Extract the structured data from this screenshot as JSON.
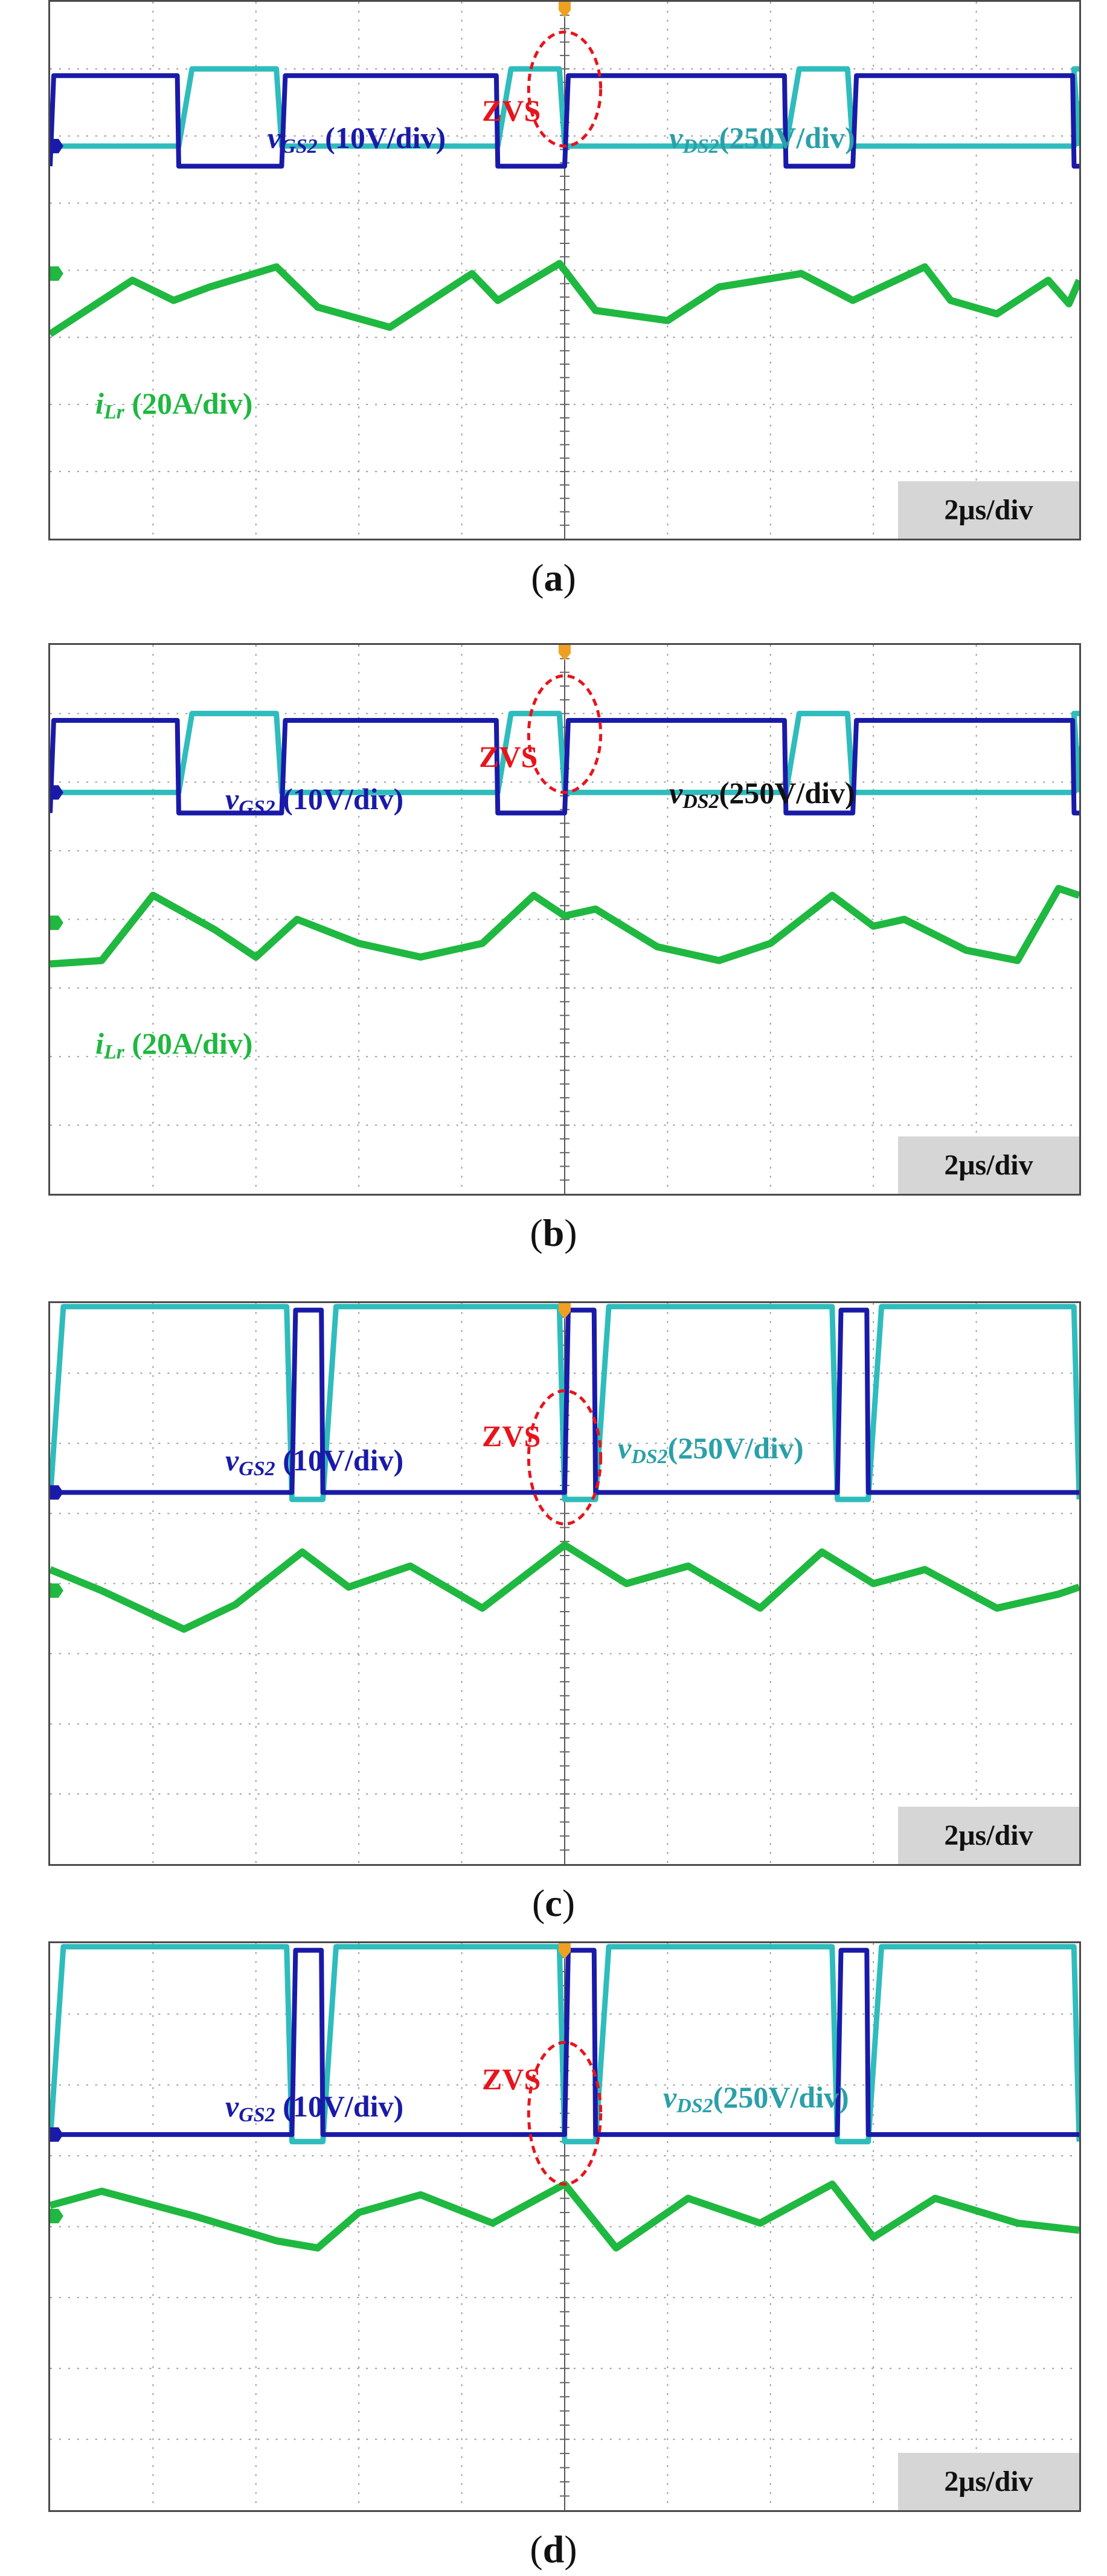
{
  "colors": {
    "gate": "#1a1aa8",
    "drain": "#2fbcbc",
    "current": "#1fb840",
    "zvs": "#e8141b",
    "grid": "#9a9a9a"
  },
  "chart_data": [
    {
      "type": "line",
      "panel": "a",
      "caption": "a",
      "labels": {
        "vgs": {
          "v": "v",
          "sub": "GS2",
          "rest": " (10V/div)"
        },
        "vds": {
          "v": "v",
          "sub": "DS2",
          "rest": "(250V/div)"
        },
        "ilr": {
          "v": "i",
          "sub": "Lr",
          "rest": " (20A/div)"
        },
        "zvs": "ZVS",
        "timebase": "2μs/div"
      },
      "grid_divisions": {
        "x": 10,
        "y": 8
      },
      "time_per_div_us": 2,
      "series": [
        {
          "key": "vgs",
          "on_intervals_div": [
            [
              -0.2,
              1.25
            ],
            [
              2.25,
              4.35
            ],
            [
              5.0,
              7.15
            ],
            [
              7.8,
              9.95
            ]
          ],
          "high_div": 1.05,
          "low_div": -0.3,
          "baseline_div": 2.15
        },
        {
          "key": "vds",
          "on_intervals_div": [
            [
              1.25,
              2.25
            ],
            [
              4.35,
              5.0
            ],
            [
              7.15,
              7.8
            ],
            [
              9.95,
              10.2
            ]
          ],
          "high_div": 1.15,
          "low_div": 0.0,
          "baseline_div": 2.15
        },
        {
          "key": "ilr",
          "points": [
            [
              0,
              -0.9
            ],
            [
              0.8,
              -0.1
            ],
            [
              1.2,
              -0.4
            ],
            [
              1.55,
              -0.2
            ],
            [
              2.2,
              0.1
            ],
            [
              2.6,
              -0.5
            ],
            [
              3.3,
              -0.8
            ],
            [
              4.1,
              0.0
            ],
            [
              4.35,
              -0.4
            ],
            [
              4.95,
              0.15
            ],
            [
              5.3,
              -0.55
            ],
            [
              6.0,
              -0.7
            ],
            [
              6.5,
              -0.2
            ],
            [
              7.3,
              0.0
            ],
            [
              7.8,
              -0.4
            ],
            [
              8.5,
              0.1
            ],
            [
              8.75,
              -0.4
            ],
            [
              9.2,
              -0.6
            ],
            [
              9.7,
              -0.1
            ],
            [
              9.9,
              -0.45
            ],
            [
              10.0,
              -0.1
            ]
          ],
          "baseline_div": 4.05
        }
      ],
      "zvs_marker_div": {
        "cx": 5.0,
        "cy": 1.3,
        "rx": 0.35,
        "ry": 0.85
      }
    },
    {
      "type": "line",
      "panel": "b",
      "caption": "b",
      "labels": {
        "vgs": {
          "v": "v",
          "sub": "GS2",
          "rest": " (10V/div)"
        },
        "vds": {
          "v": "v",
          "sub": "DS2",
          "rest": "(250V/div)"
        },
        "ilr": {
          "v": "i",
          "sub": "Lr",
          "rest": " (20A/div)"
        },
        "zvs": "ZVS",
        "timebase": "2μs/div"
      },
      "grid_divisions": {
        "x": 10,
        "y": 8
      },
      "time_per_div_us": 2,
      "series": [
        {
          "key": "vgs",
          "on_intervals_div": [
            [
              -0.2,
              1.25
            ],
            [
              2.25,
              4.35
            ],
            [
              5.0,
              7.15
            ],
            [
              7.8,
              9.95
            ]
          ],
          "high_div": 1.05,
          "low_div": -0.3,
          "baseline_div": 2.15
        },
        {
          "key": "vds",
          "on_intervals_div": [
            [
              1.25,
              2.25
            ],
            [
              4.35,
              5.0
            ],
            [
              7.15,
              7.8
            ],
            [
              9.95,
              10.2
            ]
          ],
          "high_div": 1.15,
          "low_div": 0.0,
          "baseline_div": 2.15
        },
        {
          "key": "ilr",
          "points": [
            [
              0,
              -0.6
            ],
            [
              0.5,
              -0.55
            ],
            [
              1.0,
              0.4
            ],
            [
              1.6,
              -0.1
            ],
            [
              2.0,
              -0.5
            ],
            [
              2.4,
              0.05
            ],
            [
              3.0,
              -0.3
            ],
            [
              3.6,
              -0.5
            ],
            [
              4.2,
              -0.3
            ],
            [
              4.7,
              0.4
            ],
            [
              5.0,
              0.1
            ],
            [
              5.3,
              0.2
            ],
            [
              5.9,
              -0.35
            ],
            [
              6.5,
              -0.55
            ],
            [
              7.0,
              -0.3
            ],
            [
              7.6,
              0.4
            ],
            [
              8.0,
              -0.05
            ],
            [
              8.3,
              0.05
            ],
            [
              8.9,
              -0.4
            ],
            [
              9.4,
              -0.55
            ],
            [
              9.8,
              0.5
            ],
            [
              10.0,
              0.4
            ]
          ],
          "baseline_div": 4.05
        }
      ],
      "zvs_marker_div": {
        "cx": 5.0,
        "cy": 1.3,
        "rx": 0.35,
        "ry": 0.85
      }
    },
    {
      "type": "line",
      "panel": "c",
      "caption": "c",
      "labels": {
        "vgs": {
          "v": "v",
          "sub": "GS2",
          "rest": " (10V/div)"
        },
        "vds": {
          "v": "v",
          "sub": "DS2",
          "rest": "(250V/div)"
        },
        "ilr": {
          "v": "i",
          "sub": "Lr",
          "rest": " (20A/div)"
        },
        "zvs": "ZVS",
        "timebase": "2μs/div"
      },
      "grid_divisions": {
        "x": 10,
        "y": 8
      },
      "time_per_div_us": 2,
      "series": [
        {
          "key": "vgs",
          "on_intervals_div": [
            [
              2.35,
              2.65
            ],
            [
              5.0,
              5.3
            ],
            [
              7.65,
              7.95
            ]
          ],
          "high_div": 2.6,
          "low_div": 0.0,
          "baseline_div": 2.7
        },
        {
          "key": "vds",
          "on_intervals_div": [
            [
              -0.2,
              2.35
            ],
            [
              2.65,
              5.0
            ],
            [
              5.3,
              7.65
            ],
            [
              7.95,
              10.2
            ]
          ],
          "high_div": 2.65,
          "low_div": -0.1,
          "baseline_div": 2.7
        },
        {
          "key": "ilr",
          "points": [
            [
              0,
              0.3
            ],
            [
              0.5,
              0.0
            ],
            [
              1.3,
              -0.55
            ],
            [
              1.8,
              -0.2
            ],
            [
              2.45,
              0.55
            ],
            [
              2.9,
              0.05
            ],
            [
              3.5,
              0.35
            ],
            [
              4.2,
              -0.25
            ],
            [
              5.0,
              0.65
            ],
            [
              5.6,
              0.1
            ],
            [
              6.2,
              0.35
            ],
            [
              6.9,
              -0.25
            ],
            [
              7.5,
              0.55
            ],
            [
              8.0,
              0.1
            ],
            [
              8.5,
              0.3
            ],
            [
              9.2,
              -0.25
            ],
            [
              9.8,
              -0.05
            ],
            [
              10.0,
              0.05
            ]
          ],
          "baseline_div": 4.1
        }
      ],
      "zvs_marker_div": {
        "cx": 5.0,
        "cy": 2.2,
        "rx": 0.35,
        "ry": 0.95
      }
    },
    {
      "type": "line",
      "panel": "d",
      "caption": "d",
      "labels": {
        "vgs": {
          "v": "v",
          "sub": "GS2",
          "rest": " (10V/div)"
        },
        "vds": {
          "v": "v",
          "sub": "DS2",
          "rest": "(250V/div)"
        },
        "ilr": {
          "v": "i",
          "sub": "Lr",
          "rest": " (20A/div)"
        },
        "zvs": "ZVS",
        "timebase": "2μs/div"
      },
      "grid_divisions": {
        "x": 10,
        "y": 8
      },
      "time_per_div_us": 2,
      "series": [
        {
          "key": "vgs",
          "on_intervals_div": [
            [
              2.35,
              2.65
            ],
            [
              5.0,
              5.3
            ],
            [
              7.65,
              7.95
            ]
          ],
          "high_div": 2.6,
          "low_div": 0.0,
          "baseline_div": 2.7
        },
        {
          "key": "vds",
          "on_intervals_div": [
            [
              -0.2,
              2.35
            ],
            [
              2.65,
              5.0
            ],
            [
              5.3,
              7.65
            ],
            [
              7.95,
              10.2
            ]
          ],
          "high_div": 2.65,
          "low_div": -0.1,
          "baseline_div": 2.7
        },
        {
          "key": "ilr",
          "points": [
            [
              0,
              0.15
            ],
            [
              0.5,
              0.35
            ],
            [
              1.4,
              0.0
            ],
            [
              2.2,
              -0.35
            ],
            [
              2.6,
              -0.45
            ],
            [
              3.0,
              0.05
            ],
            [
              3.6,
              0.3
            ],
            [
              4.3,
              -0.1
            ],
            [
              5.0,
              0.45
            ],
            [
              5.5,
              -0.45
            ],
            [
              6.2,
              0.25
            ],
            [
              6.9,
              -0.1
            ],
            [
              7.6,
              0.45
            ],
            [
              8.0,
              -0.3
            ],
            [
              8.6,
              0.25
            ],
            [
              9.4,
              -0.1
            ],
            [
              10.0,
              -0.2
            ]
          ],
          "baseline_div": 3.85
        }
      ],
      "zvs_marker_div": {
        "cx": 5.0,
        "cy": 2.4,
        "rx": 0.35,
        "ry": 1.0
      }
    }
  ]
}
